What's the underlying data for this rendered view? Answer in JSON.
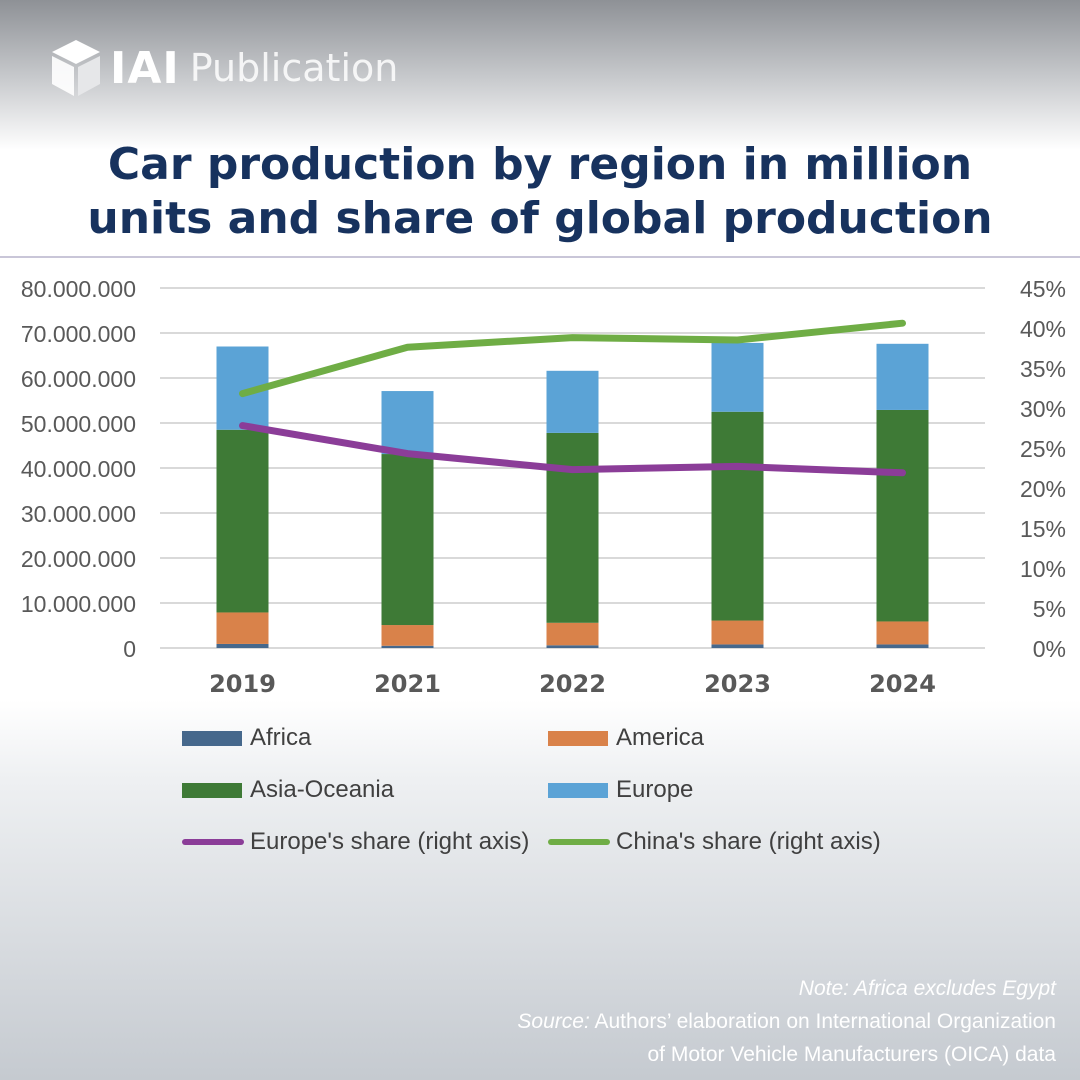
{
  "brand": {
    "logo_text": "IAI",
    "label": "Publication"
  },
  "title": {
    "line1": "Car production by region in million",
    "line2": "units and share of global production"
  },
  "colors": {
    "africa": "#46688c",
    "america": "#d9824a",
    "asia": "#3e7a36",
    "europe": "#5ba3d6",
    "europe_share": "#8b3d98",
    "china_share": "#6fad45",
    "title": "#17325e"
  },
  "chart_data": {
    "type": "bar",
    "stacked": true,
    "categories": [
      "2019",
      "2021",
      "2022",
      "2023",
      "2024"
    ],
    "series": [
      {
        "name": "Africa",
        "key": "africa",
        "values": [
          900000,
          500000,
          600000,
          800000,
          800000
        ]
      },
      {
        "name": "America",
        "key": "america",
        "values": [
          7000000,
          4600000,
          5000000,
          5300000,
          5100000
        ]
      },
      {
        "name": "Asia-Oceania",
        "key": "asia",
        "values": [
          40600000,
          38000000,
          42200000,
          46400000,
          47000000
        ]
      },
      {
        "name": "Europe",
        "key": "europe",
        "values": [
          18500000,
          14000000,
          13800000,
          15300000,
          14700000
        ]
      }
    ],
    "lines": [
      {
        "name": "Europe's share (right axis)",
        "key": "europe_share",
        "axis": "right",
        "values": [
          0.278,
          0.243,
          0.223,
          0.227,
          0.219
        ]
      },
      {
        "name": "China's share (right axis)",
        "key": "china_share",
        "axis": "right",
        "values": [
          0.318,
          0.376,
          0.388,
          0.385,
          0.406
        ]
      }
    ],
    "left_axis": {
      "ylim": [
        0,
        80000000
      ],
      "ticks": [
        "80.000.000",
        "70.000.000",
        "60.000.000",
        "50.000.000",
        "40.000.000",
        "30.000.000",
        "20.000.000",
        "10.000.000",
        "0"
      ]
    },
    "right_axis": {
      "ylim": [
        0,
        0.45
      ],
      "ticks": [
        "45%",
        "40%",
        "35%",
        "30%",
        "25%",
        "20%",
        "15%",
        "10%",
        "5%",
        "0%"
      ]
    },
    "legend_position": "bottom",
    "grid": true
  },
  "legend": {
    "africa": "Africa",
    "america": "America",
    "asia": "Asia-Oceania",
    "europe": "Europe",
    "europe_share": "Europe's share (right axis)",
    "china_share": "China's share (right axis)"
  },
  "notes": {
    "note_label": "Note:",
    "note_text": " Africa excludes Egypt",
    "source_label": "Source:",
    "source_text_1": " Authors’ elaboration on International Organization",
    "source_text_2": "of Motor Vehicle Manufacturers (OICA) data"
  }
}
